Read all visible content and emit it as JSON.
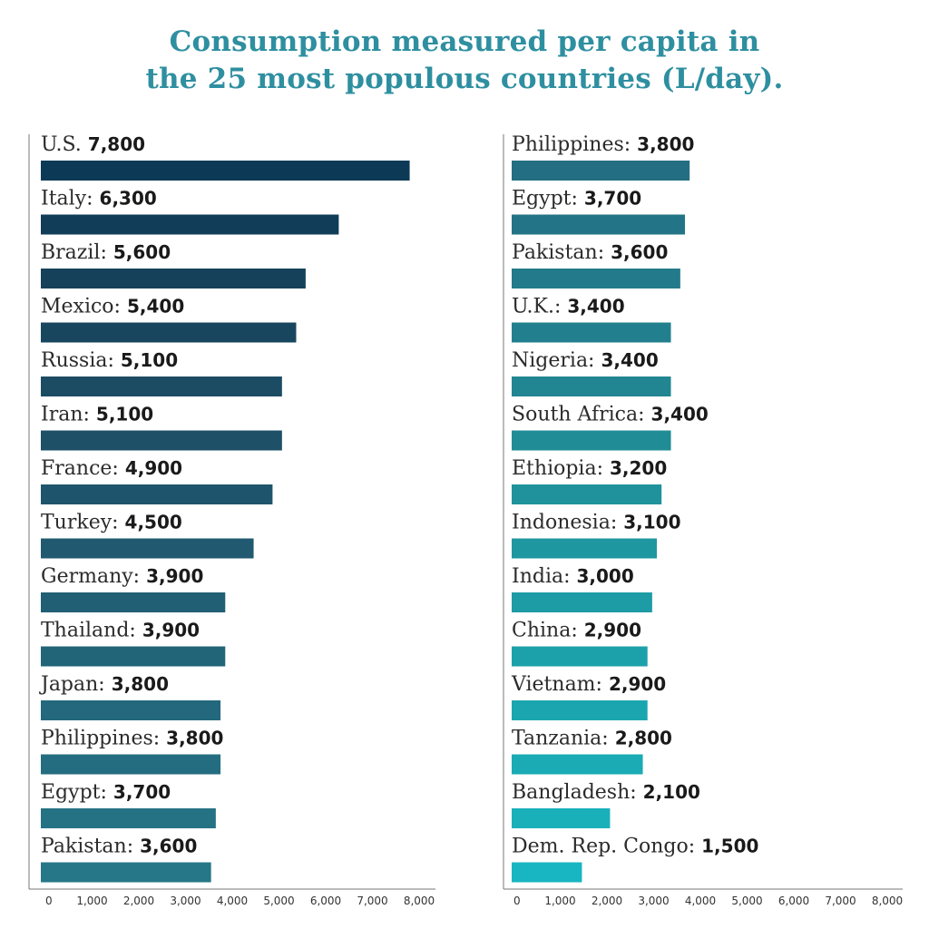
{
  "title": {
    "line1": "Consumption measured per capita in",
    "line2": "the 25 most populous countries (L/day)."
  },
  "chart_data": [
    {
      "type": "bar",
      "orientation": "horizontal",
      "title": "Consumption measured per capita in the 25 most populous countries (L/day).",
      "xlim": [
        0,
        8000
      ],
      "xticks": [
        "0",
        "1,000",
        "2,000",
        "3,000",
        "4,000",
        "5,000",
        "6,000",
        "7,000",
        "8,000"
      ],
      "categories": [
        "U.S.",
        "Italy:",
        "Brazil:",
        "Mexico:",
        "Russia:",
        "Iran:",
        "France:",
        "Turkey:",
        "Germany:",
        "Thailand:",
        "Japan:",
        "Philippines:",
        "Egypt:",
        "Pakistan:"
      ],
      "value_labels": [
        "7,800",
        "6,300",
        "5,600",
        "5,400",
        "5,100",
        "5,100",
        "4,900",
        "4,500",
        "3,900",
        "3,900",
        "3,800",
        "3,800",
        "3,700",
        "3,600"
      ],
      "values": [
        7800,
        6300,
        5600,
        5400,
        5100,
        5100,
        4900,
        4500,
        3900,
        3900,
        3800,
        3800,
        3700,
        3600
      ],
      "colors": [
        "#0c3a56",
        "#113d58",
        "#15415b",
        "#19465f",
        "#1c4c64",
        "#1e5068",
        "#1f556c",
        "#205970",
        "#215f74",
        "#226478",
        "#23687c",
        "#246d80",
        "#257284",
        "#267788"
      ]
    },
    {
      "type": "bar",
      "orientation": "horizontal",
      "title": "Consumption measured per capita in the 25 most populous countries (L/day).",
      "xlim": [
        0,
        8000
      ],
      "xticks": [
        "0",
        "1,000",
        "2,000",
        "3,000",
        "4,000",
        "5,000",
        "6,000",
        "7,000",
        "8,000"
      ],
      "categories": [
        "Philippines:",
        "Egypt:",
        "Pakistan:",
        "U.K.:",
        "Nigeria:",
        "South Africa:",
        "Ethiopia:",
        "Indonesia:",
        "India:",
        "China:",
        "Vietnam:",
        "Tanzania:",
        "Bangladesh:",
        "Dem. Rep. Congo:"
      ],
      "value_labels": [
        "3,800",
        "3,700",
        "3,600",
        "3,400",
        "3,400",
        "3,400",
        "3,200",
        "3,100",
        "3,000",
        "2,900",
        "2,900",
        "2,800",
        "2,100",
        "1,500"
      ],
      "values": [
        3800,
        3700,
        3600,
        3400,
        3400,
        3400,
        3200,
        3100,
        3000,
        2900,
        2900,
        2800,
        2100,
        1500
      ],
      "colors": [
        "#236e82",
        "#237486",
        "#237a8a",
        "#22808e",
        "#218692",
        "#208c96",
        "#1f929b",
        "#1e97a0",
        "#1d9ca5",
        "#1ca1aa",
        "#1ba6af",
        "#1aabb4",
        "#19b0ba",
        "#18b6c3"
      ]
    }
  ]
}
